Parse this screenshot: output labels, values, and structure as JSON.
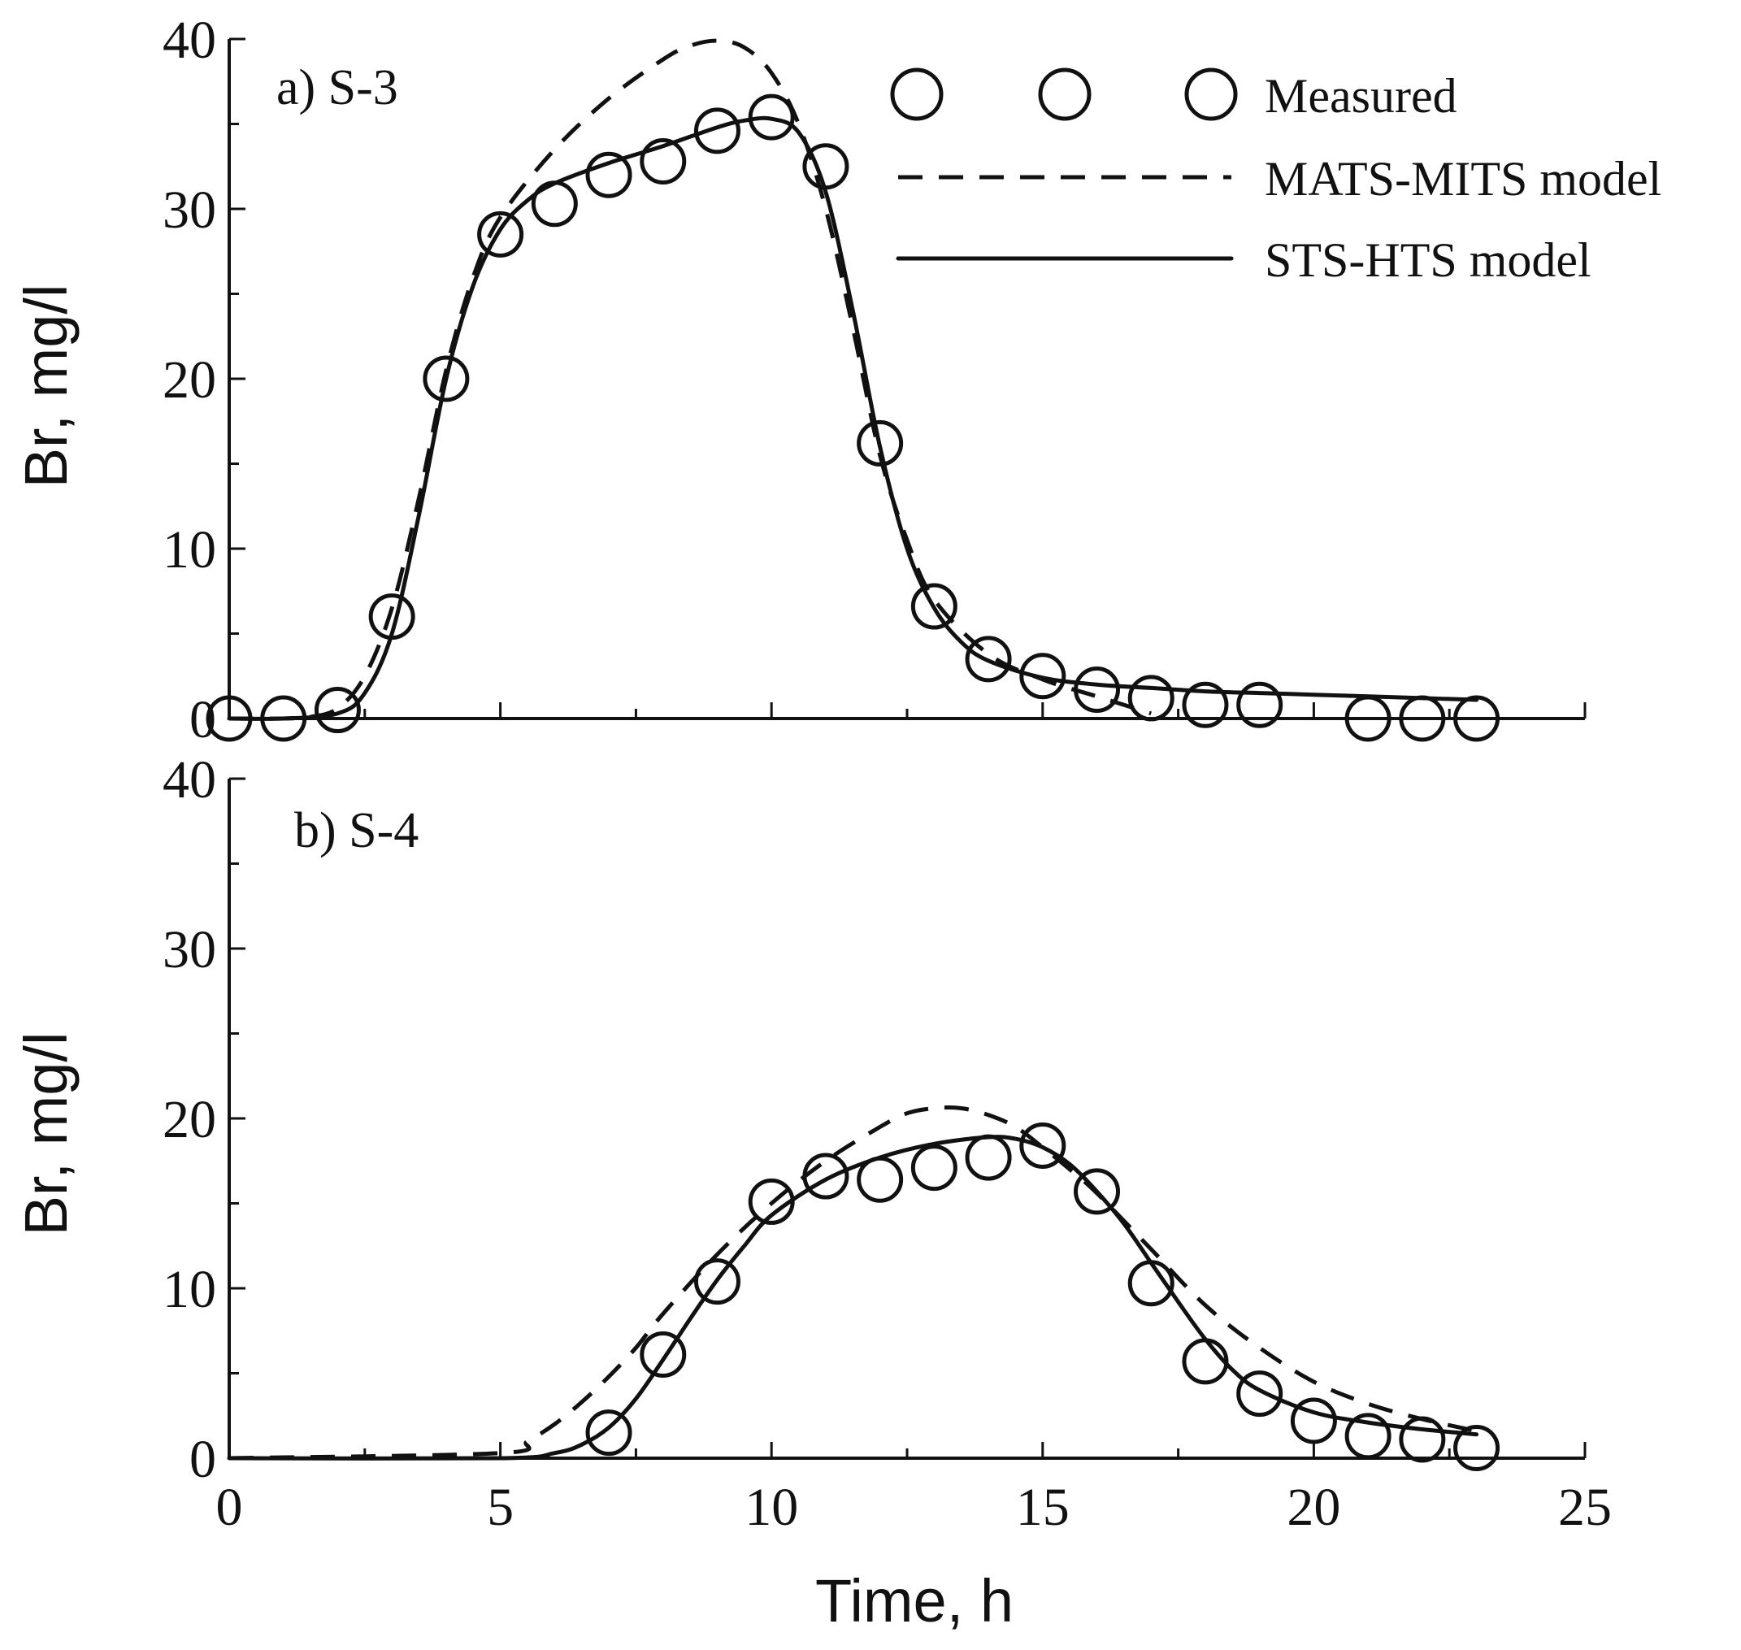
{
  "chart_data": [
    {
      "type": "line",
      "panel_id": "a",
      "title": "a) S-3",
      "xlabel": "",
      "ylabel": "Br, mg/l",
      "xlim": [
        0,
        25
      ],
      "ylim": [
        0,
        40
      ],
      "x_ticks": [
        0,
        5,
        10,
        15,
        20,
        25
      ],
      "x_tick_labels_visible": false,
      "y_ticks": [
        0,
        10,
        20,
        30,
        40
      ],
      "y_tick_labels": [
        "0",
        "10",
        "20",
        "30",
        "40"
      ],
      "legend": {
        "location": "top-right",
        "entries": [
          {
            "label": "Measured",
            "style": "circle"
          },
          {
            "label": "MATS-MITS model",
            "style": "dashed"
          },
          {
            "label": "STS-HTS model",
            "style": "solid"
          }
        ]
      },
      "series": [
        {
          "name": "Measured",
          "style": "marker",
          "x": [
            0,
            1,
            2,
            3,
            4,
            5,
            6,
            7,
            8,
            9,
            10,
            11,
            12,
            13,
            14,
            15,
            16,
            17,
            18,
            19,
            21,
            22,
            23
          ],
          "y": [
            0,
            0,
            0.5,
            6,
            20,
            28.5,
            30.3,
            32,
            32.8,
            34.6,
            35.4,
            32.5,
            16.2,
            6.6,
            3.5,
            2.5,
            1.7,
            1.2,
            0.8,
            0.8,
            0,
            0,
            0
          ]
        },
        {
          "name": "MATS-MITS model",
          "style": "dashed",
          "x": [
            0,
            1,
            1.5,
            2,
            2.5,
            3,
            3.5,
            4,
            4.5,
            5,
            6,
            7,
            8,
            8.5,
            9,
            9.5,
            10,
            10.5,
            11,
            11.5,
            12,
            12.5,
            13,
            14,
            15,
            16,
            17
          ],
          "y": [
            0,
            0,
            0.1,
            0.6,
            2.5,
            6.5,
            13,
            20.5,
            26,
            29.5,
            33.5,
            36.5,
            38.8,
            39.6,
            39.9,
            39.5,
            38,
            35,
            30,
            23,
            15.5,
            10.5,
            7,
            3.8,
            2.3,
            1.3,
            0.3
          ]
        },
        {
          "name": "STS-HTS model",
          "style": "solid",
          "x": [
            0,
            1,
            2,
            2.5,
            3,
            3.5,
            4,
            4.5,
            5,
            5.5,
            6,
            7,
            8,
            9,
            9.5,
            10,
            10.5,
            11,
            11.5,
            12,
            12.5,
            13,
            13.5,
            14,
            15,
            16,
            17,
            18,
            19,
            20,
            21,
            22,
            23
          ],
          "y": [
            0,
            0,
            0.3,
            1.5,
            5,
            12,
            20,
            25.5,
            28.8,
            30.5,
            31.5,
            32.7,
            33.7,
            34.8,
            35.2,
            35.3,
            34.5,
            31,
            24,
            16,
            10,
            6.5,
            4.5,
            3.4,
            2.4,
            2,
            1.8,
            1.6,
            1.5,
            1.4,
            1.3,
            1.2,
            1.1
          ]
        }
      ]
    },
    {
      "type": "line",
      "panel_id": "b",
      "title": "b) S-4",
      "xlabel": "Time, h",
      "ylabel": "Br, mg/l",
      "xlim": [
        0,
        25
      ],
      "ylim": [
        0,
        40
      ],
      "x_ticks": [
        0,
        5,
        10,
        15,
        20,
        25
      ],
      "x_tick_labels": [
        "0",
        "5",
        "10",
        "15",
        "20",
        "25"
      ],
      "y_ticks": [
        0,
        10,
        20,
        30,
        40
      ],
      "y_tick_labels": [
        "0",
        "10",
        "20",
        "30",
        "40"
      ],
      "series": [
        {
          "name": "Measured",
          "style": "marker",
          "x": [
            7,
            8,
            9,
            10,
            11,
            12,
            13,
            14,
            15,
            16,
            17,
            18,
            19,
            20,
            21,
            22,
            23
          ],
          "y": [
            1.5,
            6.1,
            10.4,
            15.1,
            16.6,
            16.4,
            17.1,
            17.7,
            18.4,
            15.7,
            10.3,
            5.7,
            3.8,
            2.2,
            1.3,
            1.1,
            0.6
          ]
        },
        {
          "name": "MATS-MITS model",
          "style": "dashed",
          "x": [
            0,
            5,
            5.5,
            6,
            6.5,
            7,
            7.5,
            8,
            9,
            10,
            11,
            12,
            12.5,
            13,
            13.5,
            14,
            14.5,
            15,
            15.5,
            16,
            17,
            18,
            19,
            20,
            21,
            22,
            23
          ],
          "y": [
            0,
            0.3,
            1,
            2,
            3.3,
            4.8,
            6.5,
            8.5,
            12,
            15,
            17.5,
            19.5,
            20.3,
            20.6,
            20.6,
            20.2,
            19.5,
            18.3,
            17,
            15.6,
            12.3,
            9,
            6.5,
            4.5,
            3.2,
            2.3,
            1.6
          ]
        },
        {
          "name": "STS-HTS model",
          "style": "solid",
          "x": [
            0,
            5,
            6,
            6.5,
            7,
            7.5,
            8,
            8.5,
            9,
            9.5,
            10,
            11,
            12,
            13,
            14,
            14.5,
            15,
            15.5,
            16,
            16.5,
            17,
            17.5,
            18,
            18.5,
            19,
            20,
            21,
            22,
            23
          ],
          "y": [
            0,
            0,
            0.3,
            0.8,
            1.8,
            3.5,
            5.8,
            8.2,
            10.5,
            12.5,
            14.3,
            16.4,
            17.7,
            18.5,
            18.9,
            18.8,
            18.3,
            17.3,
            15.7,
            13.8,
            11.5,
            9.2,
            7,
            5.2,
            4,
            2.7,
            2.1,
            1.7,
            1.4
          ]
        }
      ]
    }
  ]
}
